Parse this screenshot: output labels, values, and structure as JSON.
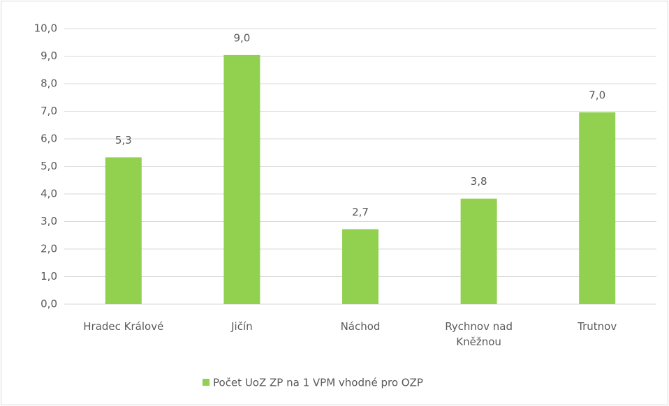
{
  "chart_data": {
    "type": "bar",
    "categories": [
      "Hradec Králové",
      "Jičín",
      "Náchod",
      "Rychnov nad Kněžnou",
      "Trutnov"
    ],
    "series": [
      {
        "name": "Počet UoZ ZP na 1 VPM vhodné pro OZP",
        "color": "#92d050",
        "values": [
          5.33,
          9.04,
          2.72,
          3.83,
          6.96
        ],
        "value_labels": [
          "5,3",
          "9,0",
          "2,7",
          "3,8",
          "7,0"
        ]
      }
    ],
    "ylim": [
      0,
      10
    ],
    "yticks": [
      {
        "value": 0,
        "label": "0,0"
      },
      {
        "value": 1,
        "label": "1,0"
      },
      {
        "value": 2,
        "label": "2,0"
      },
      {
        "value": 3,
        "label": "3,0"
      },
      {
        "value": 4,
        "label": "4,0"
      },
      {
        "value": 5,
        "label": "5,0"
      },
      {
        "value": 6,
        "label": "6,0"
      },
      {
        "value": 7,
        "label": "7,0"
      },
      {
        "value": 8,
        "label": "8,0"
      },
      {
        "value": 9,
        "label": "9,0"
      },
      {
        "value": 10,
        "label": "10,0"
      }
    ],
    "grid": true,
    "legend": "bottom"
  }
}
